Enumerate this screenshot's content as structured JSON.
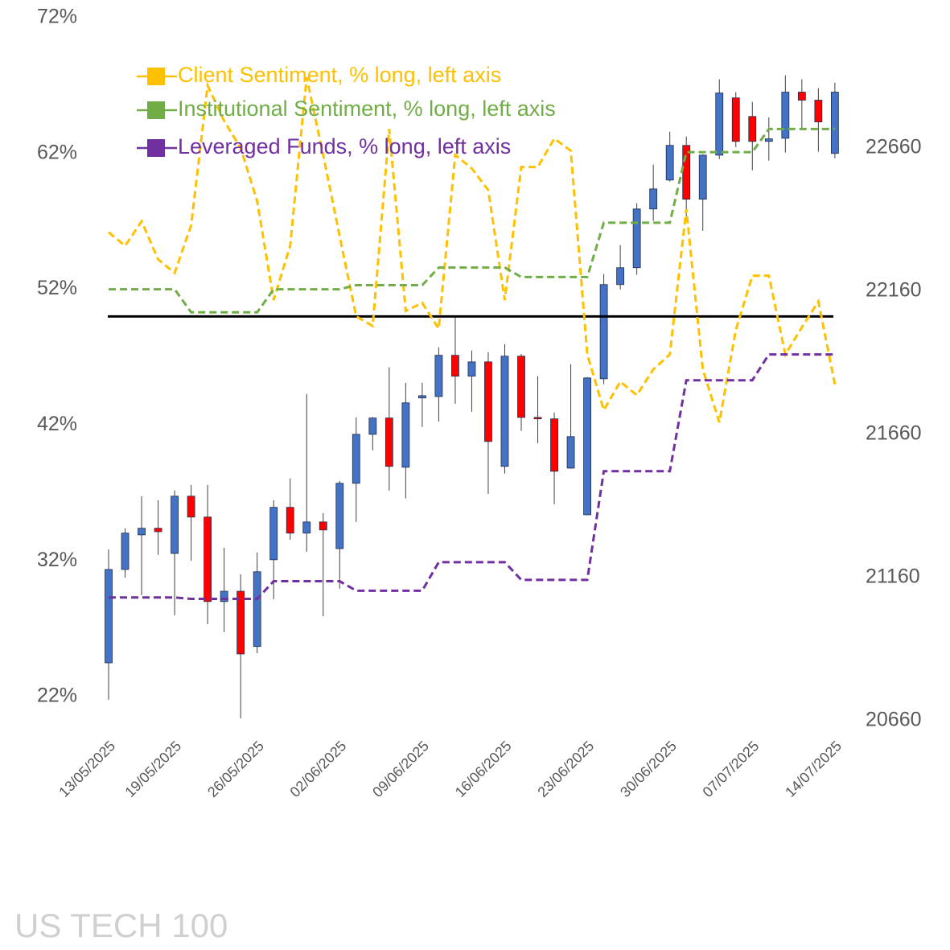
{
  "chart_data": {
    "type": "candlestick",
    "watermark": "US TECH 100",
    "categories": [
      "13/05/2025",
      null,
      null,
      null,
      "19/05/2025",
      null,
      null,
      null,
      null,
      "26/05/2025",
      null,
      null,
      null,
      null,
      "02/06/2025",
      null,
      null,
      null,
      null,
      "09/06/2025",
      null,
      null,
      null,
      null,
      "16/06/2025",
      null,
      null,
      null,
      null,
      "23/06/2025",
      null,
      null,
      null,
      null,
      "30/06/2025",
      null,
      null,
      null,
      null,
      "07/07/2025",
      null,
      null,
      null,
      null,
      "14/07/2025"
    ],
    "ylim": [
      22,
      72
    ],
    "yticks": [
      {
        "value": 22,
        "label": "22%"
      },
      {
        "value": 32,
        "label": "32%"
      },
      {
        "value": 42,
        "label": "42%"
      },
      {
        "value": 52,
        "label": "52%"
      },
      {
        "value": 62,
        "label": "62%"
      },
      {
        "value": 72,
        "label": "72%"
      }
    ],
    "y2lim": [
      20744,
      23115
    ],
    "y2ticks": [
      20660,
      21160,
      21660,
      22160,
      22660
    ],
    "hline": 50,
    "legend": "upper left",
    "candles": {
      "axis": "y2",
      "up_color": "#4472c4",
      "down_color": "#ff0000",
      "open": [
        20862,
        21188,
        21309,
        21332,
        21244,
        21444,
        21371,
        21076,
        21112,
        20919,
        21222,
        21405,
        21315,
        21354,
        21261,
        21489,
        21660,
        21717,
        21545,
        21787,
        21792,
        21936,
        21863,
        21913,
        21548,
        21933,
        21719,
        21714,
        21542,
        21379,
        21854,
        22183,
        22242,
        22447,
        22548,
        22669,
        22481,
        22635,
        22835,
        22770,
        22683,
        22694,
        22855,
        22827,
        22641
      ],
      "high": [
        21258,
        21332,
        21444,
        21430,
        21464,
        21483,
        21483,
        21264,
        21171,
        21247,
        21430,
        21506,
        21801,
        21385,
        21497,
        21719,
        21720,
        21894,
        21840,
        21840,
        21964,
        22073,
        21953,
        21947,
        21975,
        21941,
        21863,
        21736,
        21905,
        21860,
        22220,
        22321,
        22467,
        22602,
        22717,
        22700,
        22638,
        22900,
        22855,
        22821,
        22767,
        22914,
        22900,
        22869,
        22888
      ],
      "low": [
        20733,
        21160,
        21098,
        21239,
        21028,
        21219,
        20997,
        20969,
        20668,
        20896,
        21084,
        21292,
        21250,
        21025,
        21121,
        21354,
        21604,
        21464,
        21436,
        21686,
        21705,
        21767,
        21739,
        21452,
        21523,
        21672,
        21629,
        21416,
        21540,
        21377,
        21835,
        22166,
        22217,
        22405,
        22543,
        22419,
        22371,
        22621,
        22663,
        22582,
        22616,
        22644,
        22728,
        22647,
        22624
      ],
      "close": [
        21188,
        21315,
        21332,
        21320,
        21444,
        21371,
        21076,
        21112,
        20893,
        21180,
        21405,
        21315,
        21354,
        21326,
        21489,
        21660,
        21717,
        21548,
        21770,
        21795,
        21936,
        21863,
        21913,
        21635,
        21933,
        21719,
        21714,
        21531,
        21652,
        21857,
        22183,
        22242,
        22447,
        22517,
        22669,
        22481,
        22635,
        22852,
        22683,
        22683,
        22692,
        22855,
        22827,
        22751,
        22855
      ]
    },
    "series": [
      {
        "name": "Client Sentiment, % long, left axis",
        "color": "#ffc000",
        "values": [
          56.2,
          55.2,
          57.0,
          54.2,
          53.2,
          56.7,
          67.0,
          64.4,
          62.4,
          58.5,
          51.2,
          55.2,
          67.6,
          61.9,
          55.9,
          50.0,
          49.3,
          63.8,
          50.4,
          51.0,
          49.1,
          61.9,
          60.9,
          59.3,
          51.2,
          61.0,
          61.0,
          63.1,
          62.2,
          47.2,
          43.1,
          45.2,
          44.2,
          46.1,
          47.2,
          57.9,
          46.1,
          42.2,
          49.0,
          53.0,
          53.0,
          47.2,
          49.2,
          51.1,
          45.0
        ]
      },
      {
        "name": "Institutional Sentiment, % long, left axis",
        "color": "#70ad47",
        "values": [
          52.0,
          52.0,
          52.0,
          52.0,
          52.0,
          50.3,
          50.3,
          50.3,
          50.3,
          50.3,
          52.0,
          52.0,
          52.0,
          52.0,
          52.0,
          52.3,
          52.3,
          52.3,
          52.3,
          52.3,
          53.6,
          53.6,
          53.6,
          53.6,
          53.6,
          52.9,
          52.9,
          52.9,
          52.9,
          52.9,
          56.9,
          56.9,
          56.9,
          56.9,
          56.9,
          62.1,
          62.1,
          62.1,
          62.1,
          62.1,
          63.8,
          63.8,
          63.8,
          63.8,
          63.8
        ]
      },
      {
        "name": "Leveraged Funds, % long, left axis",
        "color": "#7030a0",
        "values": [
          29.3,
          29.3,
          29.3,
          29.3,
          29.3,
          29.2,
          29.2,
          29.2,
          29.2,
          29.2,
          30.5,
          30.5,
          30.5,
          30.5,
          30.5,
          29.8,
          29.8,
          29.8,
          29.8,
          29.8,
          31.9,
          31.9,
          31.9,
          31.9,
          31.9,
          30.6,
          30.6,
          30.6,
          30.6,
          30.6,
          38.6,
          38.6,
          38.6,
          38.6,
          38.6,
          45.3,
          45.3,
          45.3,
          45.3,
          45.3,
          47.2,
          47.2,
          47.2,
          47.2,
          47.2
        ]
      }
    ]
  }
}
